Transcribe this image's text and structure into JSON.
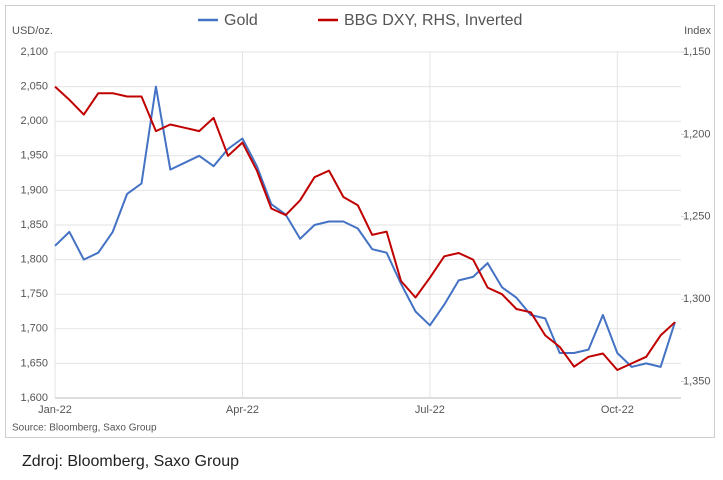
{
  "chart_data": {
    "type": "line",
    "legend": [
      "Gold",
      "BBG DXY, RHS, Inverted"
    ],
    "y_label": "USD/oz.",
    "y2_label": "Index",
    "source": "Source: Bloomberg, Saxo Group",
    "caption": "Zdroj: Bloomberg, Saxo Group",
    "categories": [
      "Jan-22",
      null,
      null,
      null,
      null,
      null,
      null,
      null,
      null,
      null,
      null,
      null,
      null,
      "Apr-22",
      null,
      null,
      null,
      null,
      null,
      null,
      null,
      null,
      null,
      null,
      null,
      null,
      "Jul-22",
      null,
      null,
      null,
      null,
      null,
      null,
      null,
      null,
      null,
      null,
      null,
      null,
      "Oct-22",
      null,
      null,
      null,
      null
    ],
    "series": [
      {
        "name": "Gold",
        "color": "#4472c4",
        "axis": "y",
        "values": [
          1820,
          1840,
          1800,
          1810,
          1840,
          1895,
          1910,
          2050,
          1930,
          1940,
          1950,
          1935,
          1960,
          1975,
          1935,
          1880,
          1865,
          1830,
          1850,
          1855,
          1855,
          1845,
          1815,
          1810,
          1765,
          1725,
          1705,
          1735,
          1770,
          1775,
          1795,
          1760,
          1745,
          1720,
          1715,
          1665,
          1665,
          1670,
          1720,
          1665,
          1645,
          1650,
          1645,
          1710
        ]
      },
      {
        "name": "BBG DXY, RHS, Inverted",
        "color": "#c00000",
        "axis": "y2",
        "values": [
          1171,
          1179,
          1188,
          1175,
          1175,
          1177,
          1177,
          1198,
          1194,
          1196,
          1198,
          1190,
          1213,
          1205,
          1222,
          1245,
          1249,
          1240,
          1226,
          1222,
          1238,
          1243,
          1261,
          1259,
          1289,
          1299,
          1287,
          1274,
          1272,
          1276,
          1293,
          1297,
          1306,
          1308,
          1322,
          1329,
          1341,
          1335,
          1333,
          1343,
          1339,
          1335,
          1322,
          1314
        ]
      }
    ],
    "ylim": [
      1600,
      2100
    ],
    "yticks": [
      {
        "value": 1600,
        "label": "1,600"
      },
      {
        "value": 1650,
        "label": "1,650"
      },
      {
        "value": 1700,
        "label": "1,700"
      },
      {
        "value": 1750,
        "label": "1,750"
      },
      {
        "value": 1800,
        "label": "1,800"
      },
      {
        "value": 1850,
        "label": "1,850"
      },
      {
        "value": 1900,
        "label": "1,900"
      },
      {
        "value": 1950,
        "label": "1,950"
      },
      {
        "value": 2000,
        "label": "2,000"
      },
      {
        "value": 2050,
        "label": "2,050"
      },
      {
        "value": 2100,
        "label": "2,100"
      }
    ],
    "y2lim": [
      1360,
      1150
    ],
    "y2ticks": [
      {
        "value": 1150,
        "label": "1,150"
      },
      {
        "value": 1200,
        "label": "1,200"
      },
      {
        "value": 1250,
        "label": "1,250"
      },
      {
        "value": 1300,
        "label": "1,300"
      },
      {
        "value": 1350,
        "label": "1,350"
      }
    ],
    "grid": true
  }
}
